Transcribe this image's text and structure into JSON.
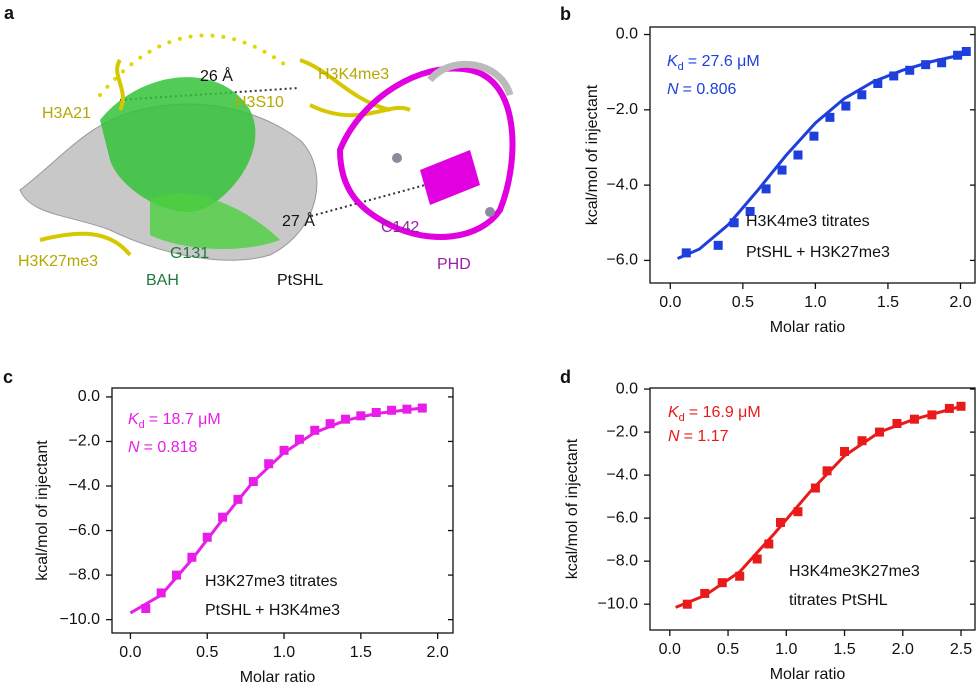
{
  "structure": {
    "panel_label": "a",
    "labels": [
      "26 Å",
      "H3K4me3",
      "H3A21",
      "H3S10",
      "27 Å",
      "C142",
      "H3K27me3",
      "G131",
      "BAH",
      "PtSHL",
      "PHD"
    ]
  },
  "chart_data": [
    {
      "type": "scatter",
      "panel_label": "b",
      "color": "#1f3fdc",
      "xlabel": "Molar ratio",
      "ylabel": "kcal/mol of injectant",
      "xlim": [
        -0.14,
        2.1
      ],
      "ylim": [
        -6.6,
        0.2
      ],
      "xticks": [
        {
          "value": 0,
          "label": "0.0"
        },
        {
          "value": 0.5,
          "label": "0.5"
        },
        {
          "value": 1,
          "label": "1.0"
        },
        {
          "value": 1.5,
          "label": "1.5"
        },
        {
          "value": 2,
          "label": "2.0"
        }
      ],
      "yticks": [
        {
          "value": 0,
          "label": "0.0"
        },
        {
          "value": -2,
          "label": "−2.0"
        },
        {
          "value": -4,
          "label": "−4.0"
        },
        {
          "value": -6,
          "label": "−6.0"
        }
      ],
      "x": [
        0.11,
        0.33,
        0.44,
        0.55,
        0.66,
        0.77,
        0.88,
        0.99,
        1.1,
        1.21,
        1.32,
        1.43,
        1.54,
        1.65,
        1.76,
        1.87,
        1.98,
        2.04
      ],
      "values": [
        -5.8,
        -5.6,
        -5.0,
        -4.7,
        -4.1,
        -3.6,
        -3.2,
        -2.7,
        -2.2,
        -1.9,
        -1.6,
        -1.3,
        -1.1,
        -0.95,
        -0.8,
        -0.75,
        -0.55,
        -0.45
      ],
      "fit_x": [
        0.05,
        0.2,
        0.4,
        0.6,
        0.8,
        1.0,
        1.2,
        1.4,
        1.6,
        1.8,
        2.05
      ],
      "fit_values": [
        -5.95,
        -5.7,
        -5.05,
        -4.15,
        -3.2,
        -2.35,
        -1.7,
        -1.25,
        -0.95,
        -0.72,
        -0.5
      ],
      "kd_symbol": "K",
      "kd_subscript": "d",
      "kd_text": "= 27.6 μM",
      "n_symbol": "N",
      "n_text": "= 0.806",
      "note": [
        "H3K4me3 titrates",
        "PtSHL + H3K27me3"
      ]
    },
    {
      "type": "scatter",
      "panel_label": "c",
      "color": "#e81ee8",
      "xlabel": "Molar ratio",
      "ylabel": "kcal/mol of injectant",
      "xlim": [
        -0.12,
        2.1
      ],
      "ylim": [
        -10.6,
        0.4
      ],
      "xticks": [
        {
          "value": 0,
          "label": "0.0"
        },
        {
          "value": 0.5,
          "label": "0.5"
        },
        {
          "value": 1,
          "label": "1.0"
        },
        {
          "value": 1.5,
          "label": "1.5"
        },
        {
          "value": 2,
          "label": "2.0"
        }
      ],
      "yticks": [
        {
          "value": 0,
          "label": "0.0"
        },
        {
          "value": -2,
          "label": "−2.0"
        },
        {
          "value": -4,
          "label": "−4.0"
        },
        {
          "value": -6,
          "label": "−6.0"
        },
        {
          "value": -8,
          "label": "−8.0"
        },
        {
          "value": -10,
          "label": "−10.0"
        }
      ],
      "x": [
        0.1,
        0.2,
        0.3,
        0.4,
        0.5,
        0.6,
        0.7,
        0.8,
        0.9,
        1.0,
        1.1,
        1.2,
        1.3,
        1.4,
        1.5,
        1.6,
        1.7,
        1.8,
        1.9
      ],
      "values": [
        -9.5,
        -8.8,
        -8.0,
        -7.2,
        -6.3,
        -5.4,
        -4.6,
        -3.8,
        -3.0,
        -2.4,
        -1.9,
        -1.5,
        -1.2,
        -1.0,
        -0.85,
        -0.7,
        -0.6,
        -0.55,
        -0.5
      ],
      "fit_x": [
        0.0,
        0.2,
        0.4,
        0.6,
        0.8,
        1.0,
        1.2,
        1.4,
        1.6,
        1.9
      ],
      "fit_values": [
        -9.7,
        -8.9,
        -7.3,
        -5.5,
        -3.8,
        -2.5,
        -1.6,
        -1.05,
        -0.75,
        -0.5
      ],
      "kd_symbol": "K",
      "kd_subscript": "d",
      "kd_text": "= 18.7 μM",
      "n_symbol": "N",
      "n_text": "= 0.818",
      "note": [
        "H3K27me3 titrates",
        "PtSHL + H3K4me3"
      ]
    },
    {
      "type": "scatter",
      "panel_label": "d",
      "color": "#e81a1a",
      "xlabel": "Molar ratio",
      "ylabel": "kcal/mol of injectant",
      "xlim": [
        -0.17,
        2.62
      ],
      "ylim": [
        -11.2,
        0.05
      ],
      "xticks": [
        {
          "value": 0,
          "label": "0.0"
        },
        {
          "value": 0.5,
          "label": "0.5"
        },
        {
          "value": 1,
          "label": "1.0"
        },
        {
          "value": 1.5,
          "label": "1.5"
        },
        {
          "value": 2,
          "label": "2.0"
        },
        {
          "value": 2.5,
          "label": "2.5"
        }
      ],
      "yticks": [
        {
          "value": 0,
          "label": "0.0"
        },
        {
          "value": -2,
          "label": "−2.0"
        },
        {
          "value": -4,
          "label": "−4.0"
        },
        {
          "value": -6,
          "label": "−6.0"
        },
        {
          "value": -8,
          "label": "−8.0"
        },
        {
          "value": -10,
          "label": "−10.0"
        }
      ],
      "x": [
        0.15,
        0.3,
        0.45,
        0.6,
        0.75,
        0.85,
        0.95,
        1.1,
        1.25,
        1.35,
        1.5,
        1.65,
        1.8,
        1.95,
        2.1,
        2.25,
        2.4,
        2.5
      ],
      "values": [
        -10.0,
        -9.5,
        -9.0,
        -8.7,
        -7.9,
        -7.2,
        -6.2,
        -5.7,
        -4.6,
        -3.8,
        -2.9,
        -2.4,
        -2.0,
        -1.6,
        -1.4,
        -1.2,
        -0.9,
        -0.8
      ],
      "fit_x": [
        0.05,
        0.3,
        0.6,
        0.9,
        1.2,
        1.5,
        1.8,
        2.1,
        2.5
      ],
      "fit_values": [
        -10.15,
        -9.6,
        -8.5,
        -6.7,
        -4.8,
        -3.1,
        -2.0,
        -1.4,
        -0.8
      ],
      "kd_symbol": "K",
      "kd_subscript": "d",
      "kd_text": "= 16.9 μM",
      "n_symbol": "N",
      "n_text": "= 1.17",
      "note": [
        "H3K4me3K27me3",
        "titrates PtSHL"
      ]
    }
  ]
}
